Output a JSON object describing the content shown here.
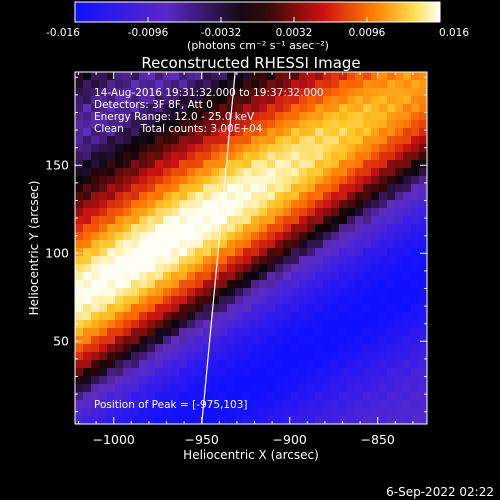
{
  "colorbar": {
    "ticks": [
      "-0.016",
      "-0.0096",
      "-0.0032",
      "0.0032",
      "0.0096",
      "0.016"
    ],
    "tick_values": [
      -0.016,
      -0.0096,
      -0.0032,
      0.0032,
      0.0096,
      0.016
    ],
    "range": [
      -0.016,
      0.016
    ],
    "units_label": "(photons cm⁻² s⁻¹ asec⁻²)"
  },
  "chart_data": {
    "type": "heatmap",
    "title": "Reconstructed RHESSI Image",
    "xlabel": "Heliocentric X (arcsec)",
    "ylabel": "Heliocentric Y (arcsec)",
    "xlim": [
      -1022,
      -822
    ],
    "ylim": [
      3,
      203
    ],
    "xticks": [
      -1000,
      -950,
      -900,
      -850
    ],
    "xtick_labels": [
      "−1000",
      "−950",
      "−900",
      "−850"
    ],
    "yticks": [
      50,
      100,
      150
    ],
    "ytick_labels": [
      "50",
      "100",
      "150"
    ],
    "annotations": [
      "14-Aug-2016 19:31:32.000 to 19:37:32.000",
      "Detectors: 3F 8F, Att 0",
      "Energy Range: 12.0 - 25.0 keV",
      "Clean     Total counts: 3.00E+04"
    ],
    "peak_label": "Position of Peak = [-975,103]",
    "peak": [
      -975,
      103
    ],
    "limb_line": [
      [
        -950,
        3
      ],
      [
        -931,
        203
      ]
    ],
    "colormap": "blue-purple-red-yellow-white",
    "grid": false
  },
  "footer": {
    "timestamp": "6-Sep-2022 02:22"
  }
}
